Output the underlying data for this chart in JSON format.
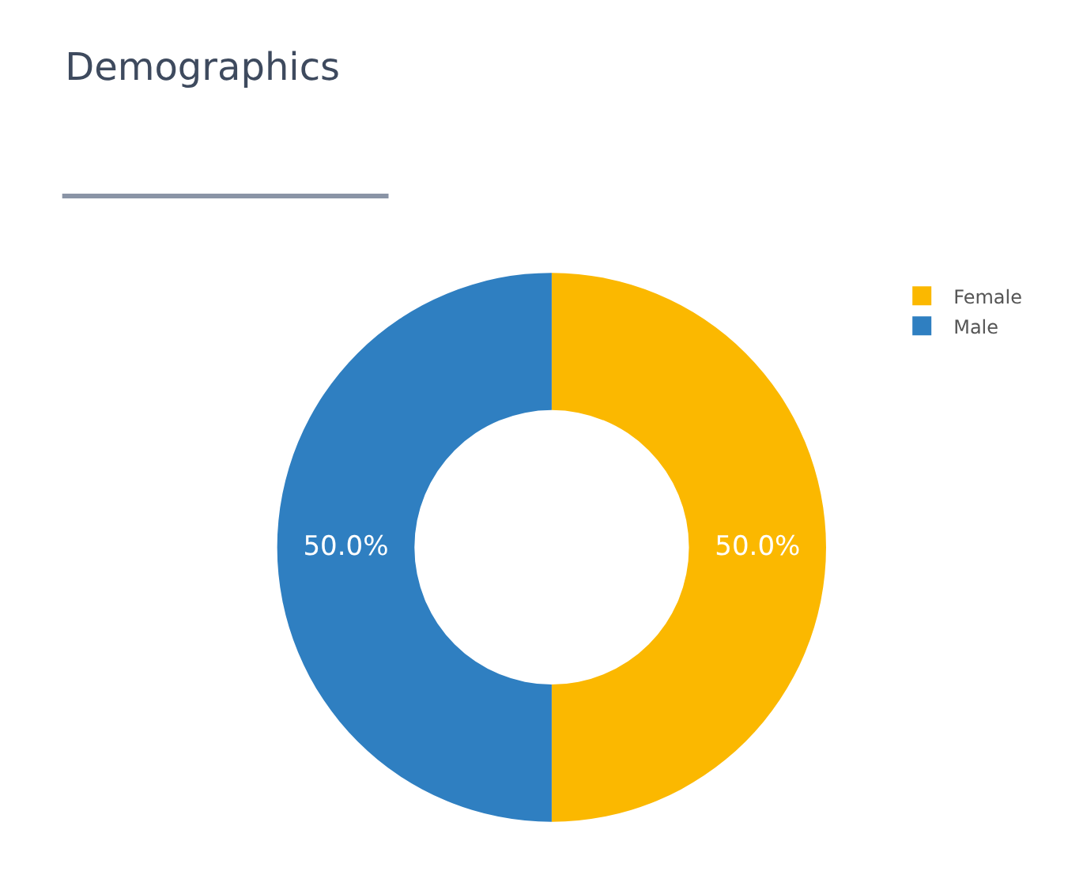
{
  "chart_data": {
    "type": "donut",
    "title": "Demographics",
    "categories": [
      "Female",
      "Male"
    ],
    "values": [
      50,
      50
    ],
    "colors": [
      "#fbb800",
      "#2f7fc1"
    ],
    "value_labels": [
      "50.0%",
      "50.0%"
    ],
    "legend": "top right"
  }
}
